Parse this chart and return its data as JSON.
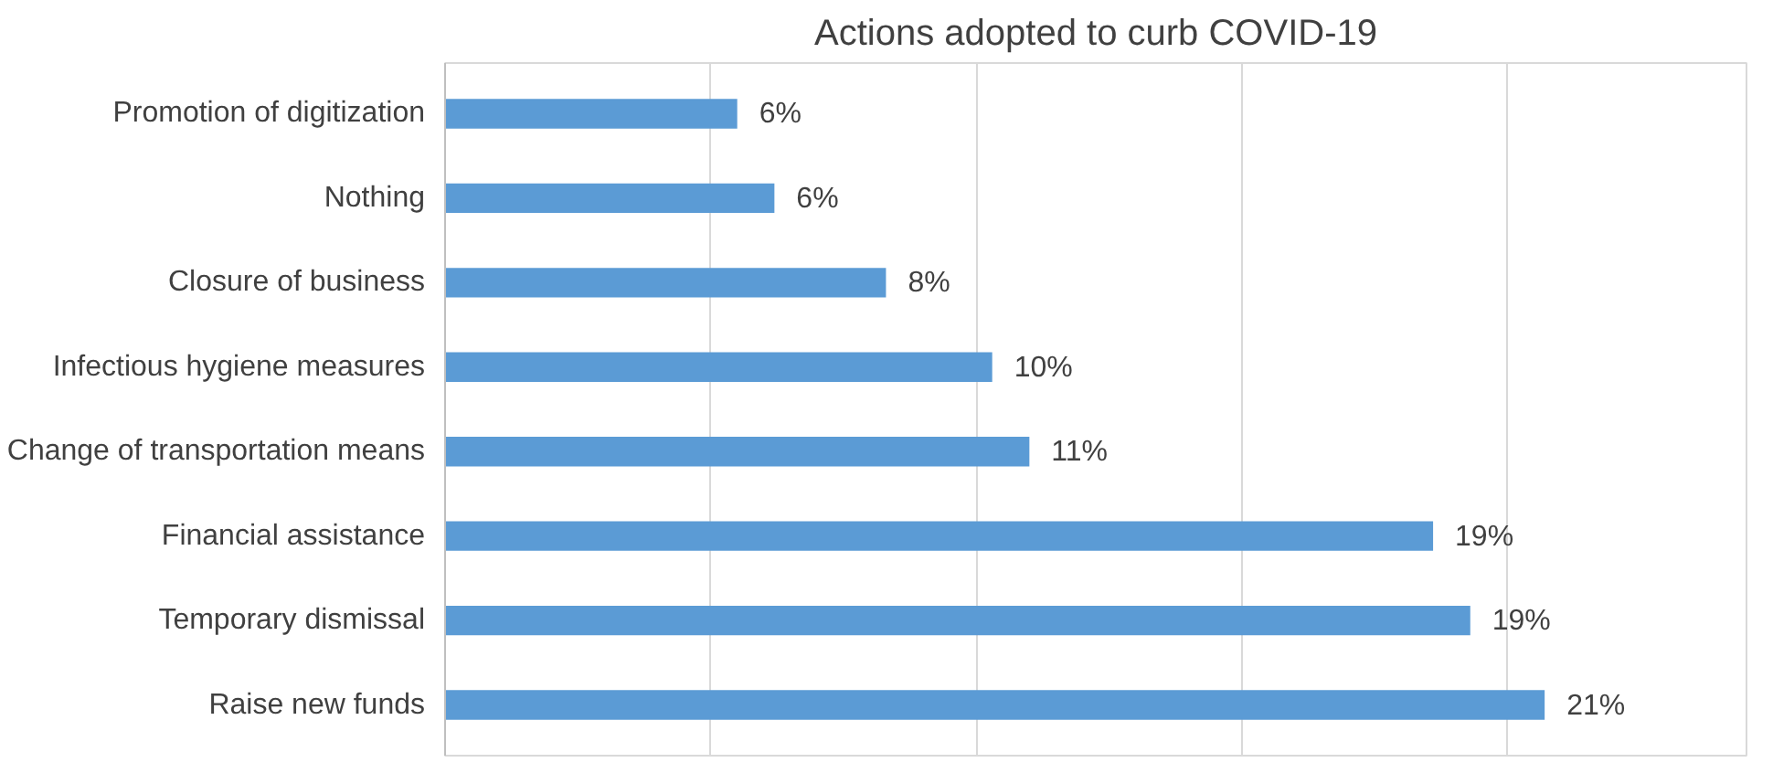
{
  "chart_data": {
    "type": "bar",
    "orientation": "horizontal",
    "title": "Actions adopted to curb COVID-19",
    "categories": [
      "Promotion of digitization",
      "Nothing",
      "Closure of business",
      "Infectious hygiene measures",
      "Change of transportation means",
      "Financial assistance",
      "Temporary dismissal",
      "Raise new funds"
    ],
    "values": [
      5.5,
      6.2,
      8.3,
      10.3,
      11.0,
      18.6,
      19.3,
      20.7
    ],
    "value_labels": [
      "6%",
      "6%",
      "8%",
      "10%",
      "11%",
      "19%",
      "19%",
      "21%"
    ],
    "color": "#5b9bd5",
    "xlim": [
      0,
      24.5
    ],
    "xticks": [
      {
        "value": 0,
        "label": null
      },
      {
        "value": 5,
        "label": null
      },
      {
        "value": 10,
        "label": null
      },
      {
        "value": 15,
        "label": null
      },
      {
        "value": 20,
        "label": null
      }
    ],
    "grid": "x",
    "tick_labels": "y"
  }
}
